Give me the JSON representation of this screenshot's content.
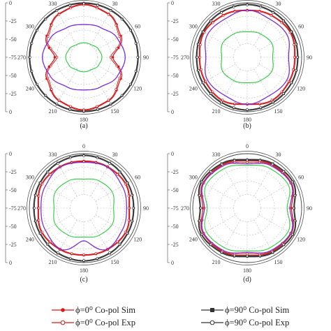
{
  "figure": {
    "panel_labels": [
      "(a)",
      "(b)",
      "(c)",
      "(d)"
    ],
    "angle_labels": [
      "0",
      "30",
      "60",
      "90",
      "120",
      "150",
      "180",
      "210",
      "240",
      "270",
      "300",
      "330"
    ],
    "radial_tick_labels": [
      "0",
      "-25",
      "-50",
      "-75",
      "-50",
      "-25",
      "0"
    ]
  },
  "legend": [
    {
      "label": "ϕ=0⁰ Co-pol Sim",
      "color": "#d7191c",
      "marker": "filled"
    },
    {
      "label": "ϕ=90⁰ Co-pol Sim",
      "color": "#333333",
      "marker": "filled"
    },
    {
      "label": "ϕ=0⁰ Co-pol Exp",
      "color": "#d7191c",
      "marker": "open"
    },
    {
      "label": "ϕ=90⁰ Co-pol Exp",
      "color": "#333333",
      "marker": "open"
    }
  ],
  "colors": {
    "co_sim_0": "#d7191c",
    "co_sim_90": "#333333",
    "cross_pol": "#7b2fd8",
    "cross_pol_2": "#2ecc40",
    "grid": "#bbbbbb"
  },
  "chart_data": [
    {
      "type": "polar",
      "panel": "(a)",
      "rlim": [
        -75,
        0
      ],
      "angles_deg": [
        0,
        30,
        60,
        90,
        120,
        150,
        180,
        210,
        240,
        270,
        300,
        330
      ],
      "series": [
        {
          "name": "ϕ=0⁰ Co-pol Sim",
          "values": [
            -2,
            -6,
            -16,
            -35,
            -16,
            -6,
            -2,
            -6,
            -16,
            -35,
            -16,
            -6
          ]
        },
        {
          "name": "ϕ=0⁰ Co-pol Exp",
          "values": [
            -3,
            -7,
            -18,
            -38,
            -18,
            -7,
            -3,
            -7,
            -18,
            -38,
            -18,
            -7
          ]
        },
        {
          "name": "ϕ=90⁰ Co-pol Sim",
          "values": [
            0,
            0,
            0,
            0,
            0,
            0,
            0,
            0,
            0,
            0,
            0,
            0
          ]
        },
        {
          "name": "ϕ=90⁰ Co-pol Exp",
          "values": [
            -1,
            -1,
            -1,
            -1,
            -1,
            -1,
            -1,
            -1,
            -1,
            -1,
            -1,
            -1
          ]
        },
        {
          "values": [
            -30,
            -28,
            -22,
            -18,
            -22,
            -28,
            -30,
            -28,
            -22,
            -18,
            -22,
            -28
          ]
        },
        {
          "values": [
            -55,
            -55,
            -52,
            -50,
            -52,
            -55,
            -55,
            -55,
            -52,
            -50,
            -52,
            -55
          ]
        }
      ]
    },
    {
      "type": "polar",
      "panel": "(b)",
      "rlim": [
        -75,
        0
      ],
      "angles_deg": [
        0,
        30,
        60,
        90,
        120,
        150,
        180,
        210,
        240,
        270,
        300,
        330
      ],
      "series": [
        {
          "name": "ϕ=0⁰ Co-pol Sim",
          "values": [
            -10,
            -8,
            -6,
            -9,
            -8,
            -6,
            -10,
            -6,
            -8,
            -9,
            -6,
            -8
          ]
        },
        {
          "name": "ϕ=0⁰ Co-pol Exp",
          "values": [
            -11,
            -9,
            -7,
            -10,
            -9,
            -7,
            -11,
            -7,
            -9,
            -10,
            -7,
            -9
          ]
        },
        {
          "name": "ϕ=90⁰ Co-pol Sim",
          "values": [
            -2,
            -3,
            -4,
            -5,
            -4,
            -3,
            -2,
            -3,
            -4,
            -5,
            -4,
            -3
          ]
        },
        {
          "name": "ϕ=90⁰ Co-pol Exp",
          "values": [
            -3,
            -4,
            -5,
            -6,
            -5,
            -4,
            -3,
            -4,
            -5,
            -6,
            -5,
            -4
          ]
        },
        {
          "values": [
            -10,
            -14,
            -12,
            -18,
            -12,
            -14,
            -10,
            -14,
            -12,
            -18,
            -12,
            -14
          ]
        },
        {
          "values": [
            -40,
            -38,
            -36,
            -40,
            -36,
            -38,
            -40,
            -38,
            -36,
            -40,
            -36,
            -38
          ]
        }
      ]
    },
    {
      "type": "polar",
      "panel": "(c)",
      "rlim": [
        -75,
        0
      ],
      "angles_deg": [
        0,
        30,
        60,
        90,
        120,
        150,
        180,
        210,
        240,
        270,
        300,
        330
      ],
      "series": [
        {
          "name": "ϕ=0⁰ Co-pol Sim",
          "values": [
            -10,
            -9,
            -8,
            -12,
            -8,
            -9,
            -10,
            -9,
            -8,
            -12,
            -8,
            -9
          ]
        },
        {
          "name": "ϕ=0⁰ Co-pol Exp",
          "values": [
            -11,
            -10,
            -9,
            -13,
            -9,
            -10,
            -11,
            -10,
            -9,
            -13,
            -9,
            -10
          ]
        },
        {
          "name": "ϕ=90⁰ Co-pol Sim",
          "values": [
            -2,
            -3,
            -5,
            -6,
            -5,
            -3,
            -2,
            -3,
            -5,
            -6,
            -5,
            -3
          ]
        },
        {
          "name": "ϕ=90⁰ Co-pol Exp",
          "values": [
            -3,
            -4,
            -6,
            -7,
            -6,
            -4,
            -3,
            -4,
            -6,
            -7,
            -6,
            -4
          ]
        },
        {
          "values": [
            -12,
            -10,
            -14,
            -16,
            -14,
            -10,
            -30,
            -10,
            -14,
            -16,
            -14,
            -10
          ]
        },
        {
          "values": [
            -35,
            -32,
            -30,
            -34,
            -30,
            -32,
            -35,
            -32,
            -30,
            -34,
            -30,
            -32
          ]
        }
      ]
    },
    {
      "type": "polar",
      "panel": "(d)",
      "rlim": [
        -75,
        0
      ],
      "angles_deg": [
        0,
        30,
        60,
        90,
        120,
        150,
        180,
        210,
        240,
        270,
        300,
        330
      ],
      "series": [
        {
          "name": "ϕ=0⁰ Co-pol Sim",
          "values": [
            -10,
            -6,
            -5,
            -14,
            -5,
            -6,
            -10,
            -6,
            -5,
            -14,
            -5,
            -6
          ]
        },
        {
          "name": "ϕ=0⁰ Co-pol Exp",
          "values": [
            -12,
            -7,
            -6,
            -16,
            -6,
            -7,
            -12,
            -7,
            -6,
            -16,
            -6,
            -7
          ]
        },
        {
          "name": "ϕ=90⁰ Co-pol Sim",
          "values": [
            -8,
            -4,
            -2,
            -10,
            -2,
            -4,
            -8,
            -4,
            -2,
            -10,
            -2,
            -4
          ]
        },
        {
          "name": "ϕ=90⁰ Co-pol Exp",
          "values": [
            -9,
            -5,
            -3,
            -11,
            -3,
            -5,
            -9,
            -5,
            -3,
            -11,
            -3,
            -5
          ]
        },
        {
          "values": [
            -14,
            -8,
            -6,
            -16,
            -6,
            -8,
            -14,
            -8,
            -6,
            -16,
            -6,
            -8
          ]
        },
        {
          "values": [
            -16,
            -12,
            -10,
            -20,
            -10,
            -12,
            -16,
            -12,
            -10,
            -20,
            -10,
            -12
          ]
        }
      ]
    }
  ]
}
